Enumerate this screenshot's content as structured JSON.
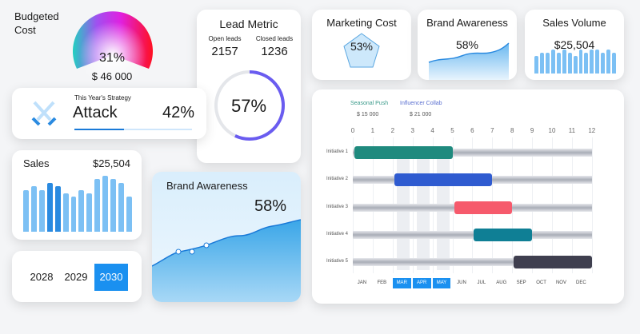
{
  "budget": {
    "title_line1": "Budgeted",
    "title_line2": "Cost",
    "percent": "31%",
    "value": "$ 46 000",
    "fill": 0.31
  },
  "lead": {
    "title": "Lead Metric",
    "open_label": "Open leads",
    "open_value": "2157",
    "closed_label": "Closed leads",
    "closed_value": "1236",
    "percent": "57%",
    "fill": 0.57,
    "color": "#6a5cf0"
  },
  "strategy": {
    "label": "This Year's Strategy",
    "name": "Attack",
    "percent": "42%",
    "fill": 0.42,
    "icon": "crossed-swords-icon"
  },
  "marketing": {
    "title": "Marketing Cost",
    "percent": "53%"
  },
  "brand_small": {
    "title": "Brand Awareness",
    "percent": "58%"
  },
  "sales_volume": {
    "title": "Sales Volume",
    "value": "$25,504",
    "bars": [
      6,
      7,
      7,
      8,
      7,
      8,
      7,
      6,
      8,
      7,
      8,
      8,
      7,
      8,
      7
    ]
  },
  "sales": {
    "title": "Sales",
    "value": "$25,504",
    "bars": [
      6,
      6.5,
      6,
      7,
      6.5,
      5.5,
      5,
      6,
      5.5,
      7.5,
      8,
      7.5,
      7,
      5
    ]
  },
  "brand_big": {
    "title": "Brand Awareness",
    "percent": "58%"
  },
  "years": {
    "items": [
      "2028",
      "2029",
      "2030"
    ],
    "selected": "2030"
  },
  "gantt": {
    "legend": [
      {
        "label": "Seasonal Push",
        "value": "$ 15 000",
        "color": "#3a9a8a"
      },
      {
        "label": "Influencer Collab",
        "value": "$ 21 000",
        "color": "#5a6fd0"
      }
    ],
    "ticks": [
      "0",
      "1",
      "2",
      "3",
      "4",
      "5",
      "6",
      "7",
      "8",
      "9",
      "10",
      "11",
      "12"
    ],
    "months": [
      "JAN",
      "FEB",
      "MAR",
      "APR",
      "MAY",
      "JUN",
      "JUL",
      "AUG",
      "SEP",
      "OCT",
      "NOV",
      "DEC"
    ],
    "highlighted_months": [
      "MAR",
      "APR",
      "MAY"
    ],
    "rows": [
      {
        "label": "Initiative 1",
        "start": 0,
        "end": 5,
        "color": "#1f8a7e"
      },
      {
        "label": "Initiative 2",
        "start": 2,
        "end": 7,
        "color": "#2f5bd0"
      },
      {
        "label": "Initiative 3",
        "start": 5,
        "end": 8,
        "color": "#f65a6c"
      },
      {
        "label": "Initiative 4",
        "start": 6,
        "end": 9,
        "color": "#0f7f95"
      },
      {
        "label": "Initiative 5",
        "start": 8,
        "end": 12,
        "color": "#3f3f4f"
      }
    ]
  }
}
